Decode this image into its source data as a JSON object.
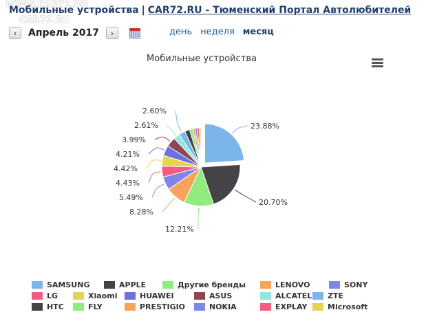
{
  "header": {
    "title": "Мобильные устройства",
    "separator": "|",
    "site_link": "CAR72.RU - Тюменский Портал Автолюбителей"
  },
  "watermark": {
    "line1": "WWW.CAR72.RU",
    "line2": "CAR72.RU"
  },
  "nav": {
    "prev_label": "‹",
    "next_label": "›",
    "period": "Апрель 2017",
    "tabs": [
      {
        "label": "день",
        "active": false
      },
      {
        "label": "неделя",
        "active": false
      },
      {
        "label": "месяц",
        "active": true
      }
    ]
  },
  "chart_data": {
    "type": "pie",
    "title": "Мобильные устройства",
    "slices": [
      {
        "name": "SAMSUNG",
        "value": 23.88,
        "label": "23.88%",
        "color": "#7cb5ec"
      },
      {
        "name": "APPLE",
        "value": 20.7,
        "label": "20.70%",
        "color": "#434348"
      },
      {
        "name": "Другие бренды",
        "value": 12.21,
        "label": "12.21%",
        "color": "#90ed7d"
      },
      {
        "name": "LENOVO",
        "value": 8.28,
        "label": "8.28%",
        "color": "#f7a35c"
      },
      {
        "name": "SONY",
        "value": 5.49,
        "label": "5.49%",
        "color": "#8085e9"
      },
      {
        "name": "LG",
        "value": 4.43,
        "label": "4.43%",
        "color": "#f15c80"
      },
      {
        "name": "Xiaomi",
        "value": 4.42,
        "label": "4.42%",
        "color": "#e4d354"
      },
      {
        "name": "HUAWEI",
        "value": 4.21,
        "label": "4.21%",
        "color": "#6a72e0"
      },
      {
        "name": "ASUS",
        "value": 3.99,
        "label": "3.99%",
        "color": "#8d4653"
      },
      {
        "name": "ALCATEL",
        "value": 2.61,
        "label": "2.61%",
        "color": "#91e8e1"
      },
      {
        "name": "ZTE",
        "value": 2.6,
        "label": "2.60%",
        "color": "#7cb5ec"
      },
      {
        "name": "HTC",
        "value": 2.0,
        "label": "",
        "color": "#434348"
      },
      {
        "name": "FLY",
        "value": 1.3,
        "label": "",
        "color": "#90ed7d"
      },
      {
        "name": "PRESTIGIO",
        "value": 1.0,
        "label": "",
        "color": "#f7a35c"
      },
      {
        "name": "NOKIA",
        "value": 0.9,
        "label": "",
        "color": "#8085e9"
      },
      {
        "name": "EXPLAY",
        "value": 0.8,
        "label": "",
        "color": "#f15c80"
      },
      {
        "name": "Microsoft",
        "value": 0.7,
        "label": "",
        "color": "#e4d354"
      }
    ],
    "legend": [
      "SAMSUNG",
      "APPLE",
      "Другие бренды",
      "LENOVO",
      "SONY",
      "LG",
      "Xiaomi",
      "HUAWEI",
      "ASUS",
      "ALCATEL",
      "ZTE",
      "HTC",
      "FLY",
      "PRESTIGIO",
      "NOKIA",
      "EXPLAY",
      "Microsoft"
    ],
    "legend_placement": "bottom"
  }
}
